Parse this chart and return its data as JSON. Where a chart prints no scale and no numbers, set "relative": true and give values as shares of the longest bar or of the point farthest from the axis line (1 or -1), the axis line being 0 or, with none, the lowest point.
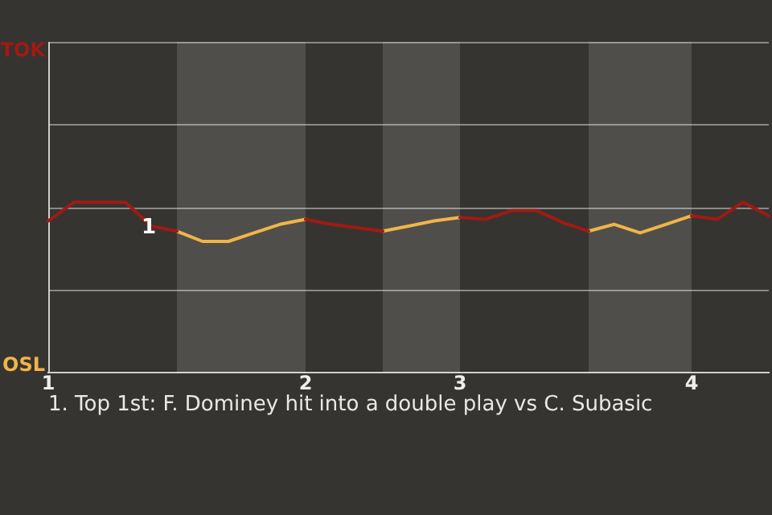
{
  "chart_data": {
    "type": "line",
    "relative": true,
    "categories": [
      "1",
      null,
      null,
      null,
      null,
      null,
      null,
      null,
      null,
      null,
      "2",
      null,
      null,
      null,
      null,
      null,
      "3",
      null,
      null,
      null,
      null,
      null,
      null,
      null,
      null,
      "4",
      null,
      null,
      null
    ],
    "series": [
      {
        "name": "TOK",
        "color": "#a01a14",
        "values": [
          0.89,
          1,
          1,
          1,
          0.86,
          0.83,
          null,
          null,
          null,
          null,
          0.9,
          0.87,
          0.85,
          0.83,
          null,
          null,
          0.91,
          0.9,
          0.95,
          0.95,
          0.88,
          0.83,
          null,
          null,
          null,
          0.92,
          0.9,
          1,
          0.92
        ]
      },
      {
        "name": "OSL",
        "color": "#f0b548",
        "values": [
          null,
          null,
          null,
          null,
          null,
          0.83,
          0.77,
          0.77,
          0.82,
          0.87,
          0.9,
          null,
          null,
          0.83,
          0.86,
          0.89,
          0.91,
          null,
          null,
          null,
          null,
          0.83,
          0.87,
          0.82,
          0.87,
          0.92,
          null,
          null,
          null
        ]
      }
    ],
    "legend": "left",
    "marker": "none",
    "line_style": "solid",
    "annotations": [
      {
        "text": "1",
        "y": 0.86
      },
      "1. Top 1st: F. Dominey hit into a double play vs C. Subasic"
    ]
  }
}
